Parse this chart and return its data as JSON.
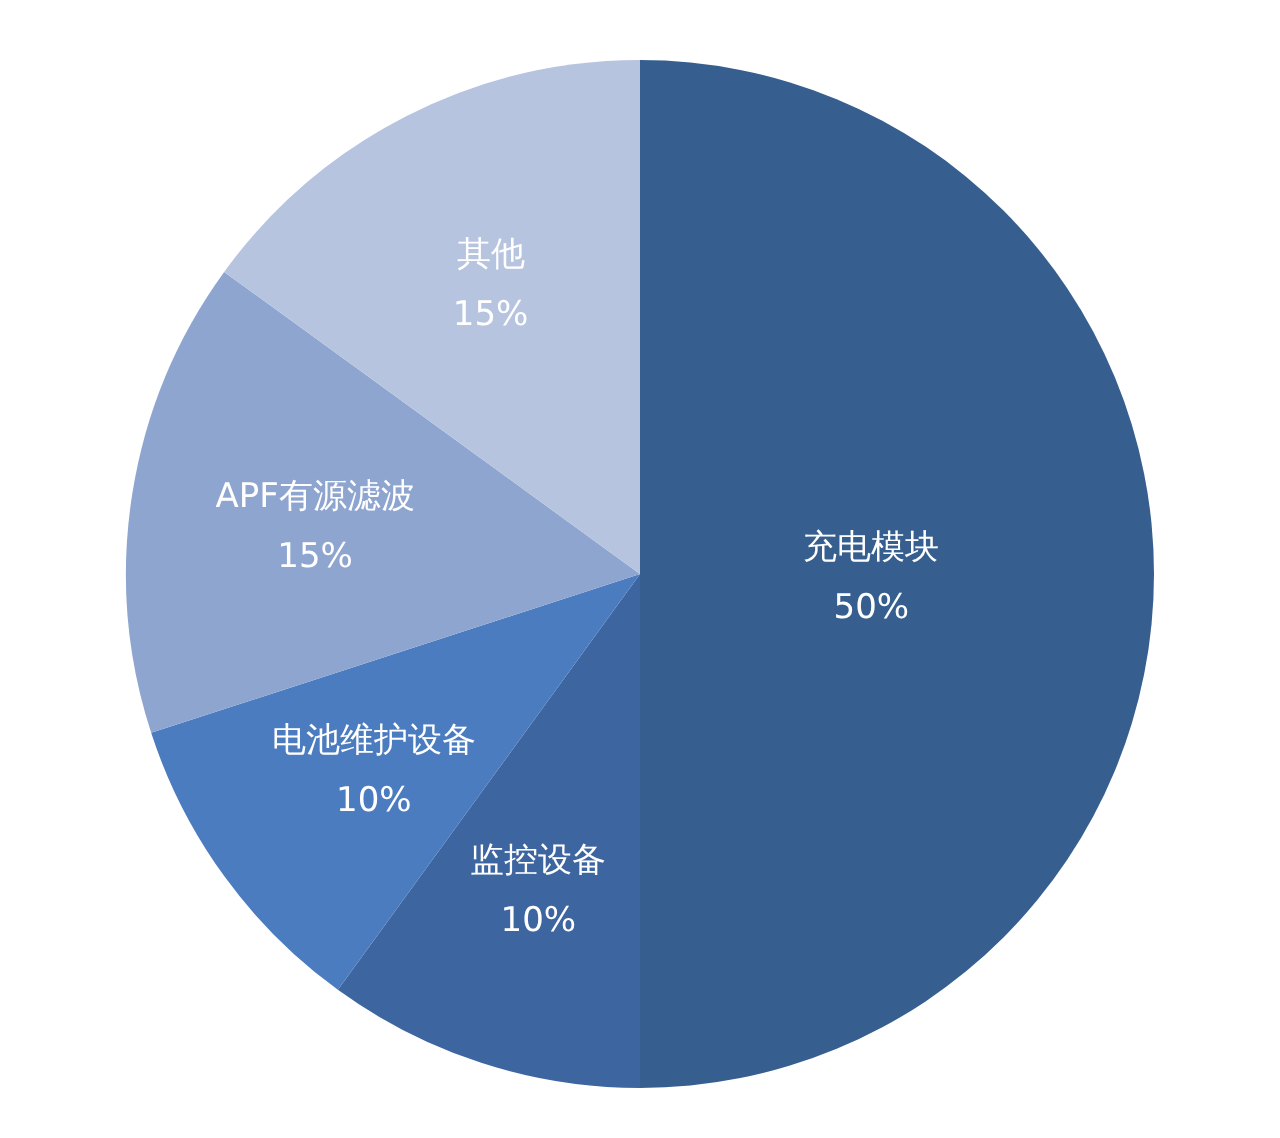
{
  "chart_data": {
    "type": "pie",
    "categories": [
      "充电模块",
      "监控设备",
      "电池维护设备",
      "APF有源滤波",
      "其他"
    ],
    "values": [
      50,
      10,
      10,
      15,
      15
    ],
    "value_labels": [
      "50%",
      "10%",
      "10%",
      "15%",
      "15%"
    ],
    "colors": [
      "#365f8f",
      "#3d65a0",
      "#4b7cbf",
      "#8ea5d0",
      "#b6c4df"
    ]
  }
}
